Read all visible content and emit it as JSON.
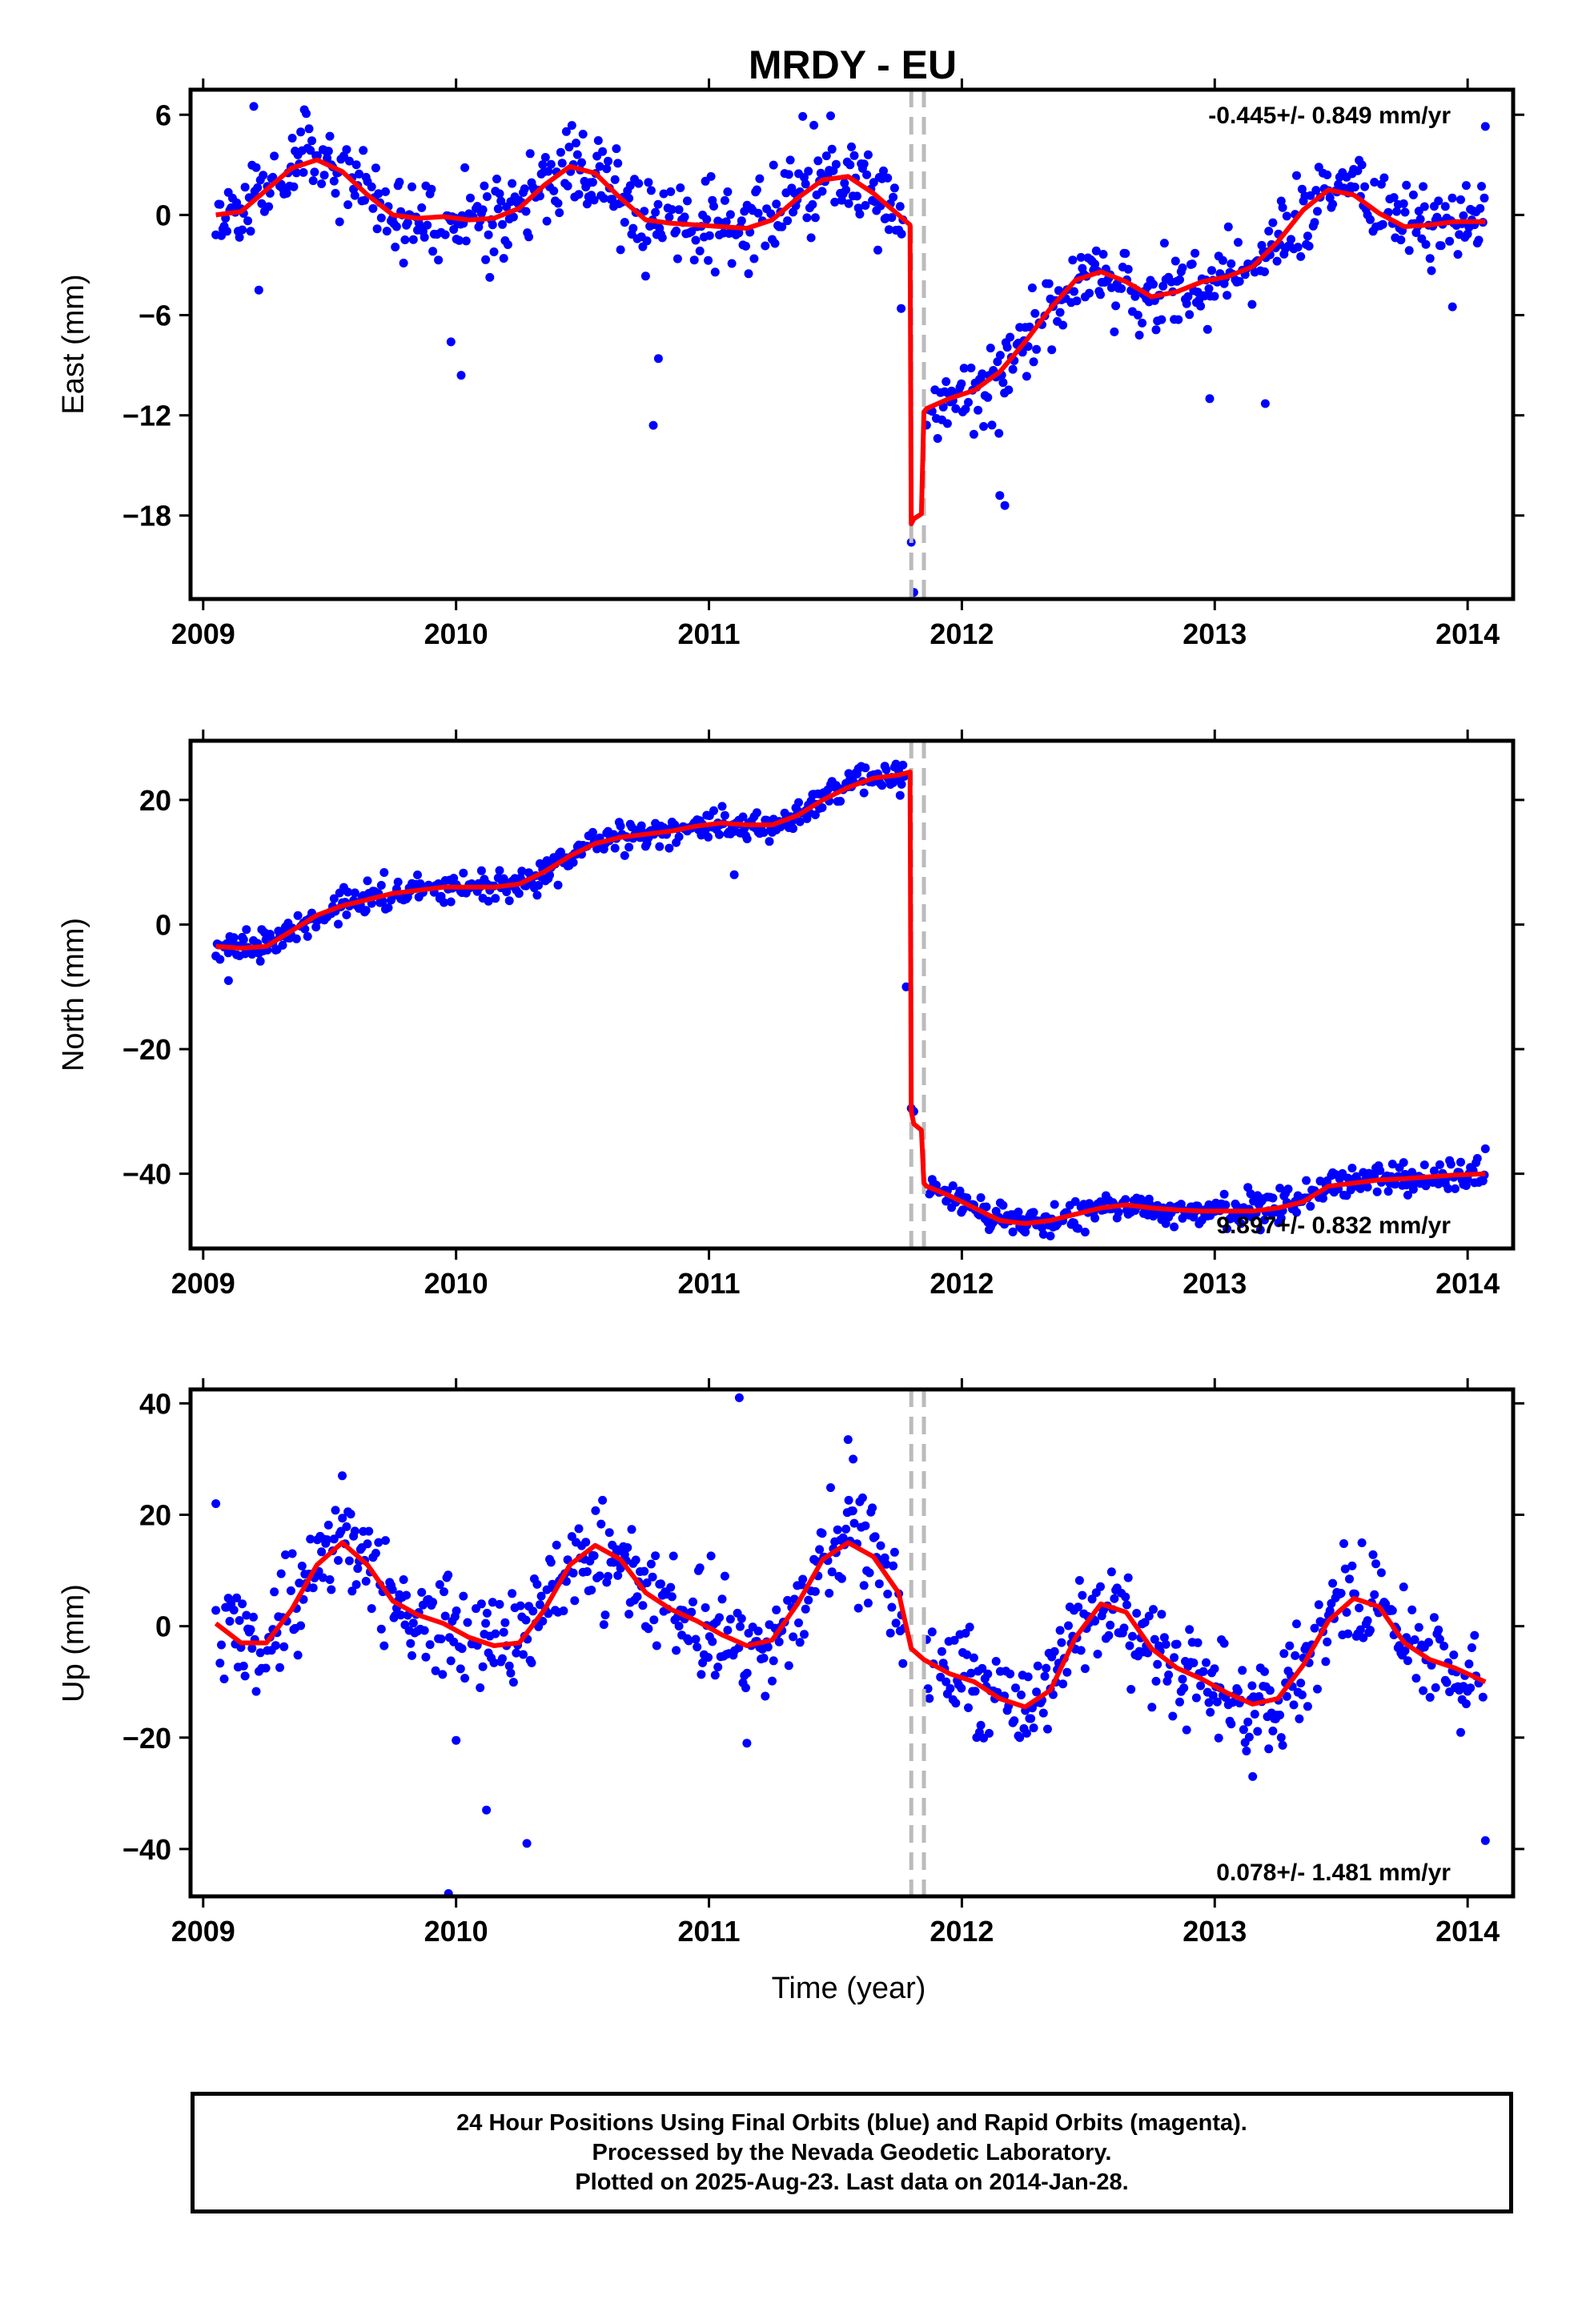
{
  "title": "MRDY - EU",
  "xlabel": "Time (year)",
  "footer": {
    "line1": "24 Hour Positions Using Final Orbits (blue) and Rapid Orbits (magenta).",
    "line2": "Processed by the Nevada Geodetic Laboratory.",
    "line3": "Plotted on 2025-Aug-23. Last data on 2014-Jan-28."
  },
  "colors": {
    "points": "#0000ff",
    "model": "#ff0000",
    "offset_lines": "#bbbbbb"
  },
  "chart_data": [
    {
      "type": "scatter",
      "ylabel": "East (mm)",
      "rate_label": "-0.445+/- 0.849 mm/yr",
      "xlim": [
        2008.95,
        2014.18
      ],
      "ylim": [
        -23.0,
        7.5
      ],
      "xticks": [
        2009,
        2010,
        2011,
        2012,
        2013,
        2014
      ],
      "yticks": [
        6,
        0,
        -6,
        -12,
        -18
      ],
      "offsets": [
        2011.8,
        2011.85
      ],
      "model": {
        "x": [
          2009.05,
          2009.15,
          2009.25,
          2009.35,
          2009.45,
          2009.55,
          2009.65,
          2009.75,
          2009.85,
          2009.95,
          2010.05,
          2010.15,
          2010.25,
          2010.35,
          2010.45,
          2010.55,
          2010.65,
          2010.75,
          2010.85,
          2010.95,
          2011.05,
          2011.15,
          2011.25,
          2011.35,
          2011.45,
          2011.55,
          2011.65,
          2011.75,
          2011.795,
          2011.8,
          2011.81,
          2011.84,
          2011.85,
          2011.86,
          2011.95,
          2012.05,
          2012.15,
          2012.25,
          2012.35,
          2012.45,
          2012.55,
          2012.65,
          2012.75,
          2012.85,
          2012.95,
          2013.05,
          2013.15,
          2013.25,
          2013.35,
          2013.45,
          2013.55,
          2013.65,
          2013.75,
          2013.85,
          2013.95,
          2014.07
        ],
        "y": [
          0.0,
          0.2,
          1.5,
          2.8,
          3.3,
          2.6,
          1.2,
          0.0,
          -0.2,
          -0.1,
          -0.3,
          -0.2,
          0.4,
          1.8,
          2.9,
          2.5,
          1.0,
          -0.3,
          -0.5,
          -0.6,
          -0.7,
          -0.8,
          -0.3,
          1.0,
          2.1,
          2.3,
          1.3,
          0.0,
          -0.6,
          -18.5,
          -18.2,
          -17.9,
          -11.8,
          -11.6,
          -11.0,
          -10.5,
          -9.4,
          -7.6,
          -5.6,
          -3.9,
          -3.4,
          -4.0,
          -4.9,
          -4.6,
          -4.0,
          -3.7,
          -3.1,
          -1.6,
          0.3,
          1.5,
          1.2,
          0.1,
          -0.7,
          -0.6,
          -0.4,
          -0.4
        ]
      },
      "data_note": "daily positions, approximate",
      "seed": 11,
      "scatter_sigma": 1.25,
      "outliers": [
        [
          2009.22,
          -4.5
        ],
        [
          2009.98,
          -7.6
        ],
        [
          2010.02,
          -9.6
        ],
        [
          2010.78,
          -12.6
        ],
        [
          2010.8,
          -8.6
        ],
        [
          2011.76,
          -5.6
        ],
        [
          2011.8,
          -19.6
        ],
        [
          2011.81,
          -22.6
        ],
        [
          2012.15,
          -16.8
        ],
        [
          2012.17,
          -17.4
        ],
        [
          2012.98,
          -11.0
        ],
        [
          2013.2,
          -11.3
        ],
        [
          2013.94,
          -5.5
        ],
        [
          2014.07,
          5.3
        ],
        [
          2009.4,
          6.3
        ],
        [
          2009.2,
          6.5
        ]
      ]
    },
    {
      "type": "scatter",
      "ylabel": "North (mm)",
      "rate_label": "9.897+/- 0.832 mm/yr",
      "xlim": [
        2008.95,
        2014.18
      ],
      "ylim": [
        -52.0,
        29.5
      ],
      "xticks": [
        2009,
        2010,
        2011,
        2012,
        2013,
        2014
      ],
      "yticks": [
        20,
        0,
        -20,
        -40
      ],
      "offsets": [
        2011.8,
        2011.85
      ],
      "model": {
        "x": [
          2009.05,
          2009.15,
          2009.25,
          2009.35,
          2009.45,
          2009.55,
          2009.65,
          2009.75,
          2009.85,
          2009.95,
          2010.05,
          2010.15,
          2010.25,
          2010.35,
          2010.45,
          2010.55,
          2010.65,
          2010.75,
          2010.85,
          2010.95,
          2011.05,
          2011.15,
          2011.25,
          2011.35,
          2011.45,
          2011.55,
          2011.65,
          2011.75,
          2011.795,
          2011.8,
          2011.81,
          2011.84,
          2011.85,
          2011.86,
          2011.95,
          2012.05,
          2012.15,
          2012.25,
          2012.35,
          2012.45,
          2012.55,
          2012.65,
          2012.75,
          2012.85,
          2012.95,
          2013.05,
          2013.15,
          2013.25,
          2013.35,
          2013.45,
          2013.55,
          2013.65,
          2013.75,
          2013.85,
          2013.95,
          2014.07
        ],
        "y": [
          -3.5,
          -3.8,
          -3.5,
          -1.0,
          1.5,
          3.0,
          4.0,
          5.0,
          5.5,
          6.0,
          6.0,
          6.0,
          6.5,
          8.5,
          11.0,
          13.0,
          14.0,
          14.5,
          15.0,
          15.8,
          16.3,
          16.0,
          16.0,
          17.5,
          20.0,
          22.0,
          23.5,
          24.0,
          24.5,
          -30.0,
          -32.0,
          -33.0,
          -41.5,
          -42.0,
          -43.5,
          -45.5,
          -47.5,
          -48.0,
          -47.5,
          -46.5,
          -45.5,
          -45.0,
          -45.5,
          -45.8,
          -46.0,
          -46.0,
          -46.0,
          -45.5,
          -44.5,
          -42.0,
          -41.5,
          -41.0,
          -40.8,
          -40.5,
          -40.2,
          -40.0
        ]
      },
      "data_note": "daily positions, approximate",
      "seed": 23,
      "scatter_sigma": 1.2,
      "outliers": [
        [
          2011.1,
          8.0
        ],
        [
          2011.78,
          -10.0
        ],
        [
          2011.8,
          -29.5
        ],
        [
          2011.81,
          -30.0
        ],
        [
          2014.07,
          -36.0
        ],
        [
          2009.1,
          -9.0
        ],
        [
          2012.35,
          -50.0
        ]
      ]
    },
    {
      "type": "scatter",
      "ylabel": "Up (mm)",
      "rate_label": "0.078+/- 1.481 mm/yr",
      "xlim": [
        2008.95,
        2014.18
      ],
      "ylim": [
        -48.5,
        42.5
      ],
      "xticks": [
        2009,
        2010,
        2011,
        2012,
        2013,
        2014
      ],
      "yticks": [
        40,
        20,
        0,
        -20,
        -40
      ],
      "offsets": [
        2011.8,
        2011.85
      ],
      "model": {
        "x": [
          2009.05,
          2009.15,
          2009.25,
          2009.35,
          2009.45,
          2009.55,
          2009.65,
          2009.75,
          2009.85,
          2009.95,
          2010.05,
          2010.15,
          2010.25,
          2010.35,
          2010.45,
          2010.55,
          2010.65,
          2010.75,
          2010.85,
          2010.95,
          2011.05,
          2011.15,
          2011.25,
          2011.35,
          2011.45,
          2011.55,
          2011.65,
          2011.75,
          2011.8,
          2011.85,
          2011.95,
          2012.05,
          2012.15,
          2012.25,
          2012.35,
          2012.45,
          2012.55,
          2012.65,
          2012.75,
          2012.85,
          2012.95,
          2013.05,
          2013.15,
          2013.25,
          2013.35,
          2013.45,
          2013.55,
          2013.65,
          2013.75,
          2013.85,
          2013.95,
          2014.07
        ],
        "y": [
          0.5,
          -3.0,
          -3.0,
          3.0,
          11.0,
          15.0,
          11.0,
          4.5,
          2.0,
          0.5,
          -2.0,
          -3.5,
          -3.0,
          3.0,
          11.0,
          14.5,
          12.0,
          6.0,
          3.0,
          1.0,
          -1.5,
          -3.5,
          -2.5,
          4.0,
          12.0,
          15.0,
          12.5,
          6.0,
          -4.0,
          -6.0,
          -8.5,
          -10.0,
          -13.0,
          -14.5,
          -11.5,
          -2.0,
          4.0,
          2.5,
          -4.0,
          -7.5,
          -9.5,
          -12.0,
          -14.0,
          -13.0,
          -7.0,
          1.0,
          5.0,
          3.5,
          -3.0,
          -6.0,
          -7.5,
          -10.0
        ]
      },
      "data_note": "daily positions, approximate",
      "seed": 37,
      "scatter_sigma": 4.3,
      "outliers": [
        [
          2009.05,
          22.0
        ],
        [
          2009.97,
          -48.0
        ],
        [
          2010.0,
          -20.5
        ],
        [
          2010.12,
          -33.0
        ],
        [
          2010.28,
          -39.0
        ],
        [
          2011.12,
          41.0
        ],
        [
          2011.15,
          -21.0
        ],
        [
          2011.55,
          33.5
        ],
        [
          2011.57,
          30.0
        ],
        [
          2014.07,
          -38.5
        ],
        [
          2009.55,
          27.0
        ],
        [
          2013.15,
          -27.0
        ]
      ]
    }
  ]
}
